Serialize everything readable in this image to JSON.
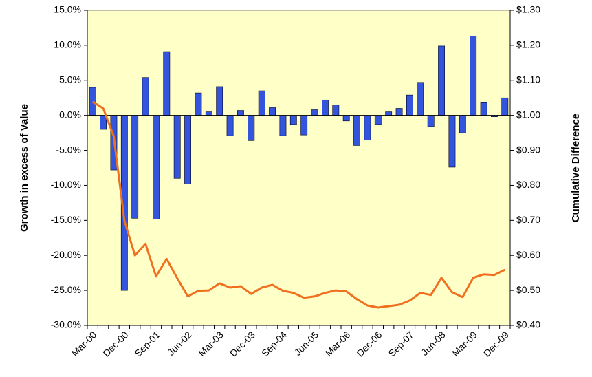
{
  "chart_data": {
    "type": "bar-line",
    "y_label": "Growth in excess of Value",
    "y2_label": "Cumulative Difference",
    "categories": [
      "Mar-00",
      null,
      null,
      "Dec-00",
      null,
      null,
      "Sep-01",
      null,
      null,
      "Jun-02",
      null,
      null,
      "Mar-03",
      null,
      null,
      "Dec-03",
      null,
      null,
      "Sep-04",
      null,
      null,
      "Jun-05",
      null,
      null,
      "Mar-06",
      null,
      null,
      "Dec-06",
      null,
      null,
      "Sep-07",
      null,
      null,
      "Jun-08",
      null,
      null,
      "Mar-09",
      null,
      null,
      "Dec-09"
    ],
    "ylim": [
      -30,
      15
    ],
    "yticks": [
      {
        "value": -30,
        "label": "-30.0%"
      },
      {
        "value": -25,
        "label": "-25.0%"
      },
      {
        "value": -20,
        "label": "-20.0%"
      },
      {
        "value": -15,
        "label": "-15.0%"
      },
      {
        "value": -10,
        "label": "-10.0%"
      },
      {
        "value": -5,
        "label": "-5.0%"
      },
      {
        "value": 0,
        "label": "0.0%"
      },
      {
        "value": 5,
        "label": "5.0%"
      },
      {
        "value": 10,
        "label": "10.0%"
      },
      {
        "value": 15,
        "label": "15.0%"
      }
    ],
    "y2lim": [
      0.4,
      1.3
    ],
    "y2ticks": [
      {
        "value": 0.4,
        "label": "$0.40"
      },
      {
        "value": 0.5,
        "label": "$0.50"
      },
      {
        "value": 0.6,
        "label": "$0.60"
      },
      {
        "value": 0.7,
        "label": "$0.70"
      },
      {
        "value": 0.8,
        "label": "$0.80"
      },
      {
        "value": 0.9,
        "label": "$0.90"
      },
      {
        "value": 1.0,
        "label": "$1.00"
      },
      {
        "value": 1.1,
        "label": "$1.10"
      },
      {
        "value": 1.2,
        "label": "$1.20"
      },
      {
        "value": 1.3,
        "label": "$1.30"
      }
    ],
    "plot_background": "#ffffc8",
    "series": [
      {
        "type": "bar",
        "color": "#3355dd",
        "values": [
          4.0,
          -2.0,
          -7.8,
          -25.0,
          -14.7,
          5.4,
          -14.8,
          9.1,
          -9.0,
          -9.8,
          3.2,
          0.5,
          4.1,
          -2.9,
          0.7,
          -3.6,
          3.5,
          1.1,
          -2.9,
          -1.3,
          -2.8,
          0.8,
          2.2,
          1.5,
          -0.8,
          -4.3,
          -3.5,
          -1.3,
          0.5,
          1.0,
          2.9,
          4.7,
          -1.6,
          9.9,
          -7.4,
          -2.5,
          11.3,
          1.9,
          -0.2,
          2.5
        ]
      },
      {
        "type": "line",
        "axis": "y2",
        "color": "#f07020",
        "values": [
          1.039,
          1.02,
          0.94,
          0.7,
          0.6,
          0.633,
          0.54,
          0.59,
          0.535,
          0.483,
          0.499,
          0.5,
          0.52,
          0.508,
          0.512,
          0.49,
          0.508,
          0.516,
          0.499,
          0.493,
          0.479,
          0.483,
          0.493,
          0.5,
          0.497,
          0.475,
          0.457,
          0.451,
          0.455,
          0.459,
          0.471,
          0.493,
          0.487,
          0.536,
          0.495,
          0.481,
          0.536,
          0.546,
          0.544,
          0.559
        ]
      }
    ]
  }
}
